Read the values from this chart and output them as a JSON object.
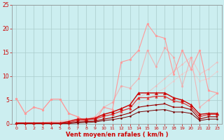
{
  "bg_color": "#cceef0",
  "grid_color": "#aacccc",
  "xlabel": "Vent moyen/en rafales ( km/h )",
  "xlim": [
    -0.5,
    23.5
  ],
  "ylim": [
    0,
    25
  ],
  "yticks": [
    0,
    5,
    10,
    15,
    20,
    25
  ],
  "xticks": [
    0,
    1,
    2,
    3,
    4,
    5,
    6,
    7,
    8,
    9,
    10,
    11,
    12,
    13,
    14,
    15,
    16,
    17,
    18,
    19,
    20,
    21,
    22,
    23
  ],
  "series": [
    {
      "x": [
        0,
        1,
        2,
        3,
        4,
        5,
        6,
        7,
        8,
        9,
        10,
        11,
        12,
        13,
        14,
        15,
        16,
        17,
        18,
        19,
        20,
        21,
        22,
        23
      ],
      "y": [
        5.3,
        2.2,
        3.5,
        3.0,
        5.2,
        5.2,
        2.2,
        1.5,
        0.5,
        0.5,
        3.5,
        3.0,
        13.0,
        13.5,
        15.5,
        21.0,
        18.5,
        18.0,
        10.5,
        15.5,
        11.5,
        15.5,
        7.0,
        6.5
      ],
      "color": "#ff9999",
      "marker": "o",
      "markersize": 2.0,
      "linewidth": 0.8,
      "alpha": 1.0,
      "zorder": 3
    },
    {
      "x": [
        0,
        1,
        2,
        3,
        4,
        5,
        6,
        7,
        8,
        9,
        10,
        11,
        12,
        13,
        14,
        15,
        16,
        17,
        18,
        19,
        20,
        21,
        22,
        23
      ],
      "y": [
        5.3,
        2.2,
        3.5,
        3.0,
        5.2,
        5.2,
        2.2,
        1.5,
        0.5,
        1.5,
        3.5,
        4.5,
        8.0,
        7.5,
        9.5,
        15.5,
        12.0,
        16.0,
        14.0,
        8.0,
        14.0,
        3.5,
        5.0,
        6.5
      ],
      "color": "#ff9999",
      "marker": "o",
      "markersize": 2.0,
      "linewidth": 0.8,
      "alpha": 0.65,
      "zorder": 3
    },
    {
      "x": [
        0,
        1,
        2,
        3,
        4,
        5,
        6,
        7,
        8,
        9,
        10,
        11,
        12,
        13,
        14,
        15,
        16,
        17,
        18,
        19,
        20,
        21,
        22,
        23
      ],
      "y": [
        0.0,
        0.1,
        0.2,
        0.3,
        0.5,
        0.6,
        0.8,
        1.0,
        1.2,
        1.5,
        2.0,
        2.5,
        3.2,
        4.0,
        5.5,
        6.5,
        8.0,
        9.5,
        11.0,
        12.5,
        14.0,
        10.5,
        11.5,
        13.0
      ],
      "color": "#ffaaaa",
      "marker": "o",
      "markersize": 1.5,
      "linewidth": 0.7,
      "alpha": 0.6,
      "zorder": 2
    },
    {
      "x": [
        0,
        1,
        2,
        3,
        4,
        5,
        6,
        7,
        8,
        9,
        10,
        11,
        12,
        13,
        14,
        15,
        16,
        17,
        18,
        19,
        20,
        21,
        22,
        23
      ],
      "y": [
        0.0,
        0.1,
        0.15,
        0.2,
        0.35,
        0.5,
        0.65,
        0.8,
        1.0,
        1.2,
        1.6,
        2.0,
        2.6,
        3.2,
        4.5,
        5.0,
        6.5,
        7.5,
        9.0,
        10.5,
        11.5,
        9.0,
        9.5,
        11.0
      ],
      "color": "#ffbbbb",
      "marker": "o",
      "markersize": 1.5,
      "linewidth": 0.7,
      "alpha": 0.55,
      "zorder": 2
    },
    {
      "x": [
        0,
        1,
        2,
        3,
        4,
        5,
        6,
        7,
        8,
        9,
        10,
        11,
        12,
        13,
        14,
        15,
        16,
        17,
        18,
        19,
        20,
        21,
        22,
        23
      ],
      "y": [
        0.2,
        0.2,
        0.2,
        0.2,
        0.2,
        0.2,
        0.5,
        1.0,
        1.0,
        1.2,
        2.0,
        2.5,
        3.2,
        4.0,
        6.5,
        6.5,
        6.5,
        6.5,
        5.5,
        5.0,
        4.0,
        2.0,
        2.2,
        2.2
      ],
      "color": "#cc0000",
      "marker": "^",
      "markersize": 3.0,
      "linewidth": 1.0,
      "alpha": 1.0,
      "zorder": 5
    },
    {
      "x": [
        0,
        1,
        2,
        3,
        4,
        5,
        6,
        7,
        8,
        9,
        10,
        11,
        12,
        13,
        14,
        15,
        16,
        17,
        18,
        19,
        20,
        21,
        22,
        23
      ],
      "y": [
        0.1,
        0.1,
        0.1,
        0.1,
        0.1,
        0.1,
        0.3,
        0.7,
        0.8,
        1.0,
        1.6,
        2.0,
        2.7,
        3.3,
        5.5,
        5.5,
        5.8,
        5.8,
        4.8,
        4.5,
        3.5,
        1.5,
        2.0,
        2.0
      ],
      "color": "#dd0000",
      "marker": "^",
      "markersize": 2.5,
      "linewidth": 0.9,
      "alpha": 0.75,
      "zorder": 4
    },
    {
      "x": [
        0,
        1,
        2,
        3,
        4,
        5,
        6,
        7,
        8,
        9,
        10,
        11,
        12,
        13,
        14,
        15,
        16,
        17,
        18,
        19,
        20,
        21,
        22,
        23
      ],
      "y": [
        0.05,
        0.05,
        0.05,
        0.05,
        0.05,
        0.05,
        0.15,
        0.4,
        0.5,
        0.6,
        1.0,
        1.3,
        1.8,
        2.3,
        3.5,
        3.8,
        4.0,
        4.2,
        3.5,
        3.5,
        3.0,
        1.0,
        1.5,
        1.5
      ],
      "color": "#990000",
      "marker": "s",
      "markersize": 2.0,
      "linewidth": 0.8,
      "alpha": 1.0,
      "zorder": 4
    },
    {
      "x": [
        0,
        1,
        2,
        3,
        4,
        5,
        6,
        7,
        8,
        9,
        10,
        11,
        12,
        13,
        14,
        15,
        16,
        17,
        18,
        19,
        20,
        21,
        22,
        23
      ],
      "y": [
        0.02,
        0.02,
        0.02,
        0.02,
        0.02,
        0.02,
        0.08,
        0.2,
        0.3,
        0.4,
        0.7,
        0.9,
        1.2,
        1.6,
        2.5,
        2.7,
        2.9,
        3.0,
        2.5,
        2.5,
        2.2,
        0.7,
        1.0,
        1.0
      ],
      "color": "#770000",
      "marker": "o",
      "markersize": 1.5,
      "linewidth": 0.7,
      "alpha": 1.0,
      "zorder": 3
    }
  ]
}
